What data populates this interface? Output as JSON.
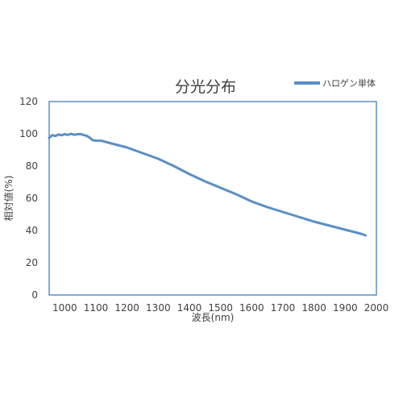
{
  "chart_data": {
    "type": "line",
    "title": "分光分布",
    "xlabel": "波長(nm)",
    "ylabel": "相対値(%)",
    "xlim": [
      950,
      2000
    ],
    "ylim": [
      0,
      120
    ],
    "x_ticks": [
      1000,
      1100,
      1200,
      1300,
      1400,
      1500,
      1600,
      1700,
      1800,
      1900,
      2000
    ],
    "y_ticks": [
      0,
      20,
      40,
      60,
      80,
      100,
      120
    ],
    "grid": false,
    "legend_position": "top-right",
    "series": [
      {
        "name": "ハロゲン単体",
        "color": "#5b8fc6",
        "x": [
          950,
          960,
          970,
          980,
          990,
          1000,
          1010,
          1020,
          1030,
          1040,
          1050,
          1060,
          1070,
          1080,
          1090,
          1100,
          1120,
          1150,
          1200,
          1250,
          1300,
          1350,
          1400,
          1450,
          1500,
          1550,
          1600,
          1650,
          1700,
          1750,
          1800,
          1850,
          1900,
          1950,
          1965
        ],
        "values": [
          97.5,
          99.2,
          98.6,
          99.6,
          99.1,
          99.8,
          99.3,
          100.0,
          99.4,
          99.7,
          99.9,
          99.3,
          98.8,
          97.6,
          96.0,
          95.8,
          95.6,
          94.0,
          91.5,
          88.0,
          84.5,
          80.0,
          75.0,
          70.5,
          66.5,
          62.5,
          58.0,
          54.5,
          51.5,
          48.5,
          45.5,
          43.0,
          40.5,
          38.0,
          37.0
        ]
      }
    ]
  }
}
